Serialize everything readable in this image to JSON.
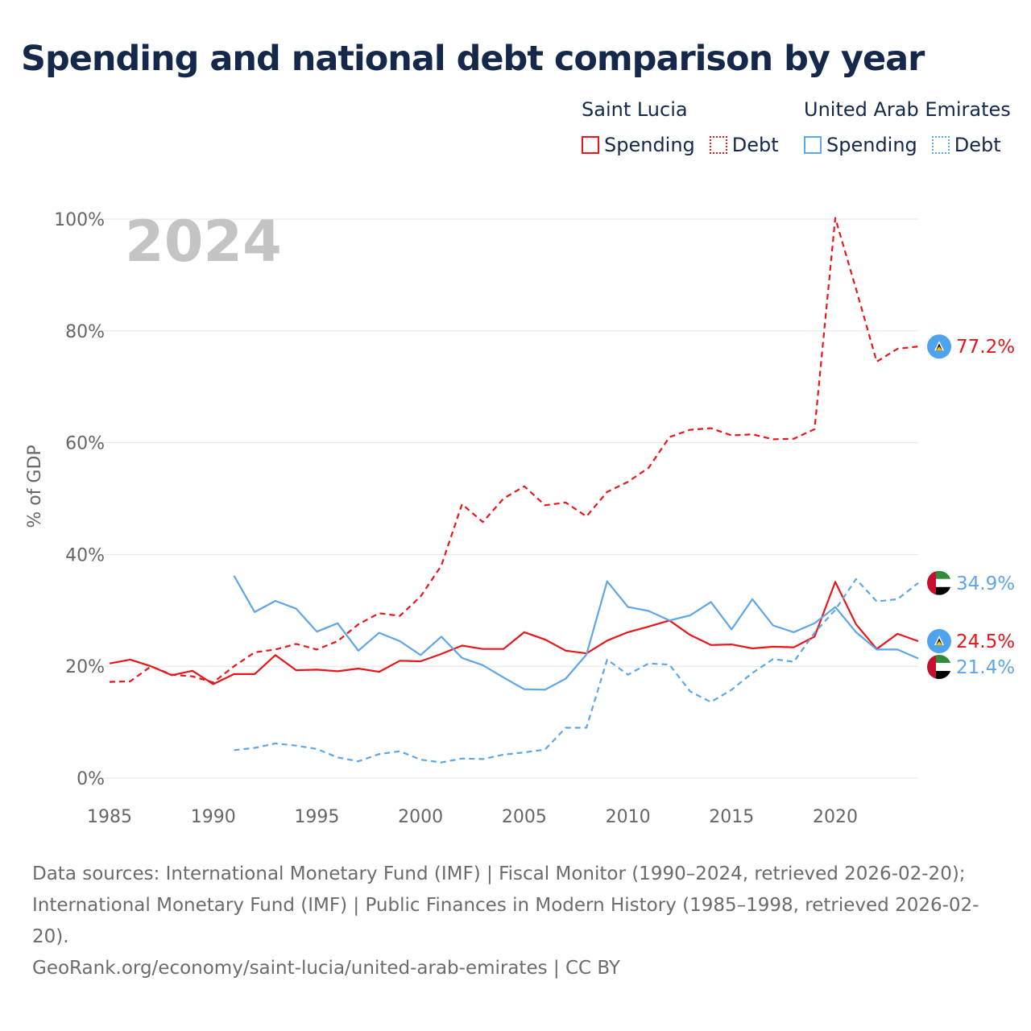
{
  "title": "Spending and national debt comparison by year",
  "legend": {
    "groups": [
      {
        "name": "Saint Lucia",
        "items": [
          "Spending",
          "Debt"
        ]
      },
      {
        "name": "United Arab Emirates",
        "items": [
          "Spending",
          "Debt"
        ]
      }
    ]
  },
  "colors": {
    "saint_lucia": "#e8161b",
    "uae": "#5ea6e6",
    "grid": "#e6e6e6",
    "axis": "#666666",
    "year_watermark": "#c4c4c4"
  },
  "chart_data": {
    "type": "line",
    "year_label": "2024",
    "ylabel": "% of GDP",
    "xlim": [
      1985,
      2024
    ],
    "ylim": [
      0,
      100
    ],
    "x_ticks": [
      1985,
      1990,
      1995,
      2000,
      2005,
      2010,
      2015,
      2020
    ],
    "y_ticks": [
      0,
      20,
      40,
      60,
      80,
      100
    ],
    "y_tick_labels": [
      "0%",
      "20%",
      "40%",
      "60%",
      "80%",
      "100%"
    ],
    "series": [
      {
        "name": "Saint Lucia Debt",
        "country": "saint_lucia",
        "style": "dashed",
        "end_label": "77.2%",
        "flag": "lc",
        "x": [
          1985,
          1986,
          1987,
          1988,
          1989,
          1990,
          1991,
          1992,
          1993,
          1994,
          1995,
          1996,
          1997,
          1998,
          1999,
          2000,
          2001,
          2002,
          2003,
          2004,
          2005,
          2006,
          2007,
          2008,
          2009,
          2010,
          2011,
          2012,
          2013,
          2014,
          2015,
          2016,
          2017,
          2018,
          2019,
          2020,
          2021,
          2022,
          2023,
          2024
        ],
        "values": [
          17.2,
          17.3,
          20,
          18.5,
          18.2,
          17.1,
          20,
          22.5,
          23,
          24,
          23,
          24.5,
          27.5,
          29.5,
          29,
          32.5,
          38,
          49,
          45.8,
          50,
          52.2,
          48.8,
          49.3,
          46.8,
          51.2,
          53,
          55.5,
          61,
          62.3,
          62.6,
          61.3,
          61.5,
          60.6,
          60.7,
          62.4,
          100.2,
          87.5,
          74.5,
          76.8,
          77.2
        ]
      },
      {
        "name": "Saint Lucia Spending",
        "country": "saint_lucia",
        "style": "solid",
        "end_label": "24.5%",
        "flag": "lc",
        "x": [
          1985,
          1986,
          1987,
          1988,
          1989,
          1990,
          1991,
          1992,
          1993,
          1994,
          1995,
          1996,
          1997,
          1998,
          1999,
          2000,
          2001,
          2002,
          2003,
          2004,
          2005,
          2006,
          2007,
          2008,
          2009,
          2010,
          2011,
          2012,
          2013,
          2014,
          2015,
          2016,
          2017,
          2018,
          2019,
          2020,
          2021,
          2022,
          2023,
          2024
        ],
        "values": [
          20.5,
          21.2,
          20,
          18.4,
          19.2,
          16.8,
          18.6,
          18.6,
          22,
          19.3,
          19.4,
          19.1,
          19.6,
          19,
          21,
          20.9,
          22.2,
          23.7,
          23.1,
          23.1,
          26.1,
          24.8,
          22.8,
          22.3,
          24.6,
          26.1,
          27.1,
          28.2,
          25.6,
          23.8,
          23.9,
          23.2,
          23.5,
          23.4,
          25.3,
          35.1,
          27.5,
          23.1,
          25.8,
          24.5
        ]
      },
      {
        "name": "United Arab Emirates Spending",
        "country": "uae",
        "style": "solid",
        "end_label": "21.4%",
        "flag": "ae",
        "x": [
          1991,
          1992,
          1993,
          1994,
          1995,
          1996,
          1997,
          1998,
          1999,
          2000,
          2001,
          2002,
          2003,
          2004,
          2005,
          2006,
          2007,
          2008,
          2009,
          2010,
          2011,
          2012,
          2013,
          2014,
          2015,
          2016,
          2017,
          2018,
          2019,
          2020,
          2021,
          2022,
          2023,
          2024
        ],
        "values": [
          36.2,
          29.7,
          31.7,
          30.3,
          26.2,
          27.7,
          22.8,
          26,
          24.5,
          22,
          25.3,
          21.5,
          20.2,
          18,
          15.9,
          15.8,
          17.8,
          22.1,
          35.2,
          30.6,
          29.9,
          28.2,
          29.1,
          31.5,
          26.6,
          32,
          27.3,
          26.1,
          27.7,
          30.6,
          26.1,
          23,
          23,
          21.4
        ]
      },
      {
        "name": "United Arab Emirates Debt",
        "country": "uae",
        "style": "dashed",
        "end_label": "34.9%",
        "flag": "ae",
        "x": [
          1991,
          1992,
          1993,
          1994,
          1995,
          1996,
          1997,
          1998,
          1999,
          2000,
          2001,
          2002,
          2003,
          2004,
          2005,
          2006,
          2007,
          2008,
          2009,
          2010,
          2011,
          2012,
          2013,
          2014,
          2015,
          2016,
          2017,
          2018,
          2019,
          2020,
          2021,
          2022,
          2023,
          2024
        ],
        "values": [
          5,
          5.4,
          6.2,
          5.8,
          5.2,
          3.7,
          3,
          4.3,
          4.8,
          3.3,
          2.8,
          3.5,
          3.4,
          4.2,
          4.6,
          5.1,
          9,
          9,
          21.2,
          18.5,
          20.5,
          20.3,
          15.5,
          13.6,
          15.8,
          18.8,
          21.3,
          20.8,
          26,
          30.1,
          35.6,
          31.6,
          32,
          34.9
        ]
      }
    ]
  },
  "footer": {
    "sources": "Data sources: International Monetary Fund (IMF) | Fiscal Monitor (1990–2024, retrieved 2026-02-20); International Monetary Fund (IMF) | Public Finances in Modern History (1985–1998, retrieved 2026-02-20).",
    "credit": "GeoRank.org/economy/saint-lucia/united-arab-emirates | CC BY"
  }
}
